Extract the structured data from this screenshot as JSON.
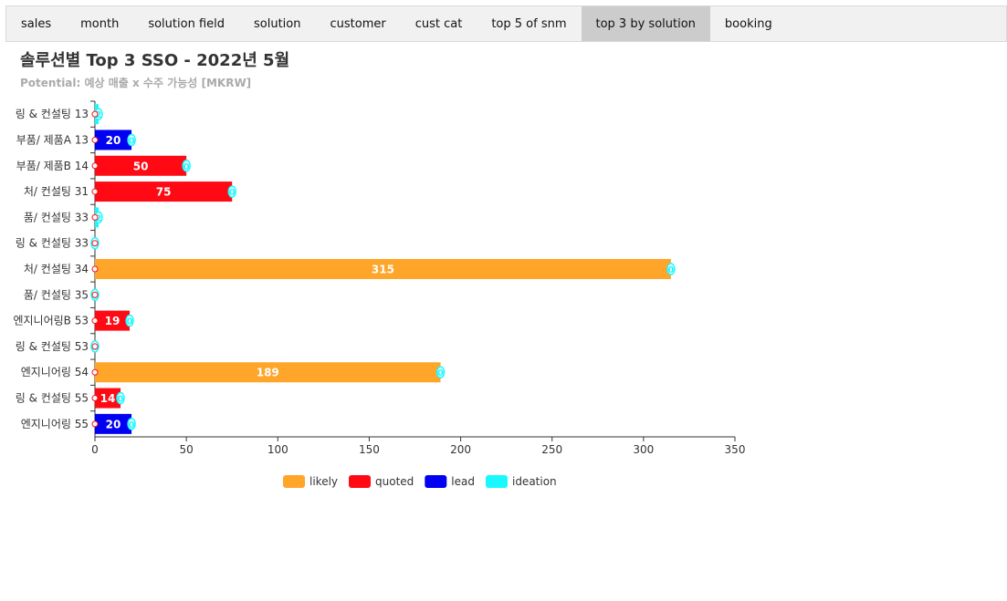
{
  "tabs": [
    {
      "label": "sales",
      "active": false
    },
    {
      "label": "month",
      "active": false
    },
    {
      "label": "solution field",
      "active": false
    },
    {
      "label": "solution",
      "active": false
    },
    {
      "label": "customer",
      "active": false
    },
    {
      "label": "cust cat",
      "active": false
    },
    {
      "label": "top 5 of snm",
      "active": false
    },
    {
      "label": "top 3 by solution",
      "active": true
    },
    {
      "label": "booking",
      "active": false
    }
  ],
  "chart_data": {
    "type": "bar",
    "orientation": "horizontal",
    "stacked": true,
    "title": "솔루션별 Top 3 SSO - 2022년 5월",
    "subtitle": "Potential: 예상 매출 x 수주 가능성 [MKRW]",
    "categories": [
      "링 & 컨설팅 13",
      "부품/ 제품A 13",
      "부품/ 제품B 14",
      "처/ 컨설팅 31",
      "품/ 컨설팅 33",
      "링 & 컨설팅 33",
      "처/ 컨설팅 34",
      "품/ 컨설팅 35",
      "엔지니어링B 53",
      "링 & 컨설팅 53",
      "엔지니어링 54",
      "링 & 컨설팅 55",
      "엔지니어링 55"
    ],
    "series": [
      {
        "name": "likely",
        "color": "#FFA52A",
        "values": [
          0,
          0,
          0,
          0,
          0,
          0,
          315,
          0,
          0,
          0,
          189,
          0,
          0
        ]
      },
      {
        "name": "quoted",
        "color": "#FF0A14",
        "values": [
          0,
          0,
          50,
          75,
          0,
          0,
          0,
          0,
          19,
          0,
          0,
          14,
          0
        ]
      },
      {
        "name": "lead",
        "color": "#0000F2",
        "values": [
          0,
          20,
          0,
          0,
          0,
          0,
          0,
          0,
          0,
          0,
          0,
          0,
          20
        ]
      },
      {
        "name": "ideation",
        "color": "#1AF8FF",
        "values": [
          2,
          0,
          0,
          0,
          2,
          0,
          0,
          0,
          0,
          0,
          0,
          0,
          0
        ]
      }
    ],
    "xlim": [
      0,
      350
    ],
    "xticks": [
      0,
      50,
      100,
      150,
      200,
      250,
      300,
      350
    ],
    "grid": false,
    "legend_position": "bottom"
  }
}
